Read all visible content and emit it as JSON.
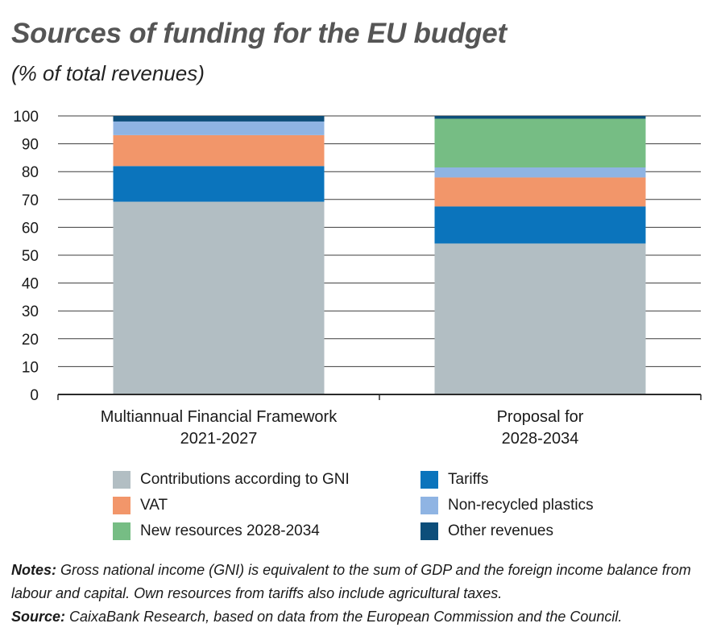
{
  "title": "Sources of funding for the EU budget",
  "subtitle": "(% of total revenues)",
  "chart_data": {
    "type": "bar",
    "stacked": true,
    "categories": [
      [
        "Multiannual Financial Framework",
        "2021-2027"
      ],
      [
        "Proposal for",
        "2028-2034"
      ]
    ],
    "ylim": [
      0,
      100
    ],
    "yticks": [
      0,
      10,
      20,
      30,
      40,
      50,
      60,
      70,
      80,
      90,
      100
    ],
    "grid": true,
    "legend_position": "bottom",
    "series": [
      {
        "name": "Contributions according to GNI",
        "color": "#b2bec3",
        "values": [
          69.2,
          54.2
        ]
      },
      {
        "name": "Tariffs",
        "color": "#0b74bc",
        "values": [
          12.8,
          13.3
        ]
      },
      {
        "name": "VAT",
        "color": "#f2966a",
        "values": [
          11.1,
          10.4
        ]
      },
      {
        "name": "Non-recycled plastics",
        "color": "#8fb4e3",
        "values": [
          4.9,
          3.6
        ]
      },
      {
        "name": "New resources 2028-2034",
        "color": "#76bd84",
        "values": [
          0,
          17.5
        ]
      },
      {
        "name": "Other revenues",
        "color": "#0d4e7a",
        "values": [
          2.0,
          1.0
        ]
      }
    ]
  },
  "legend_order": [
    0,
    1,
    2,
    3,
    4,
    5
  ],
  "notes": {
    "notes_label": "Notes:",
    "notes_text": " Gross national income (GNI) is equivalent to the sum of GDP and the foreign income balance from labour and capital. Own resources from tariffs also include agricultural taxes.",
    "source_label": "Source:",
    "source_text": " CaixaBank Research, based on data from the European Commission and the Council."
  }
}
